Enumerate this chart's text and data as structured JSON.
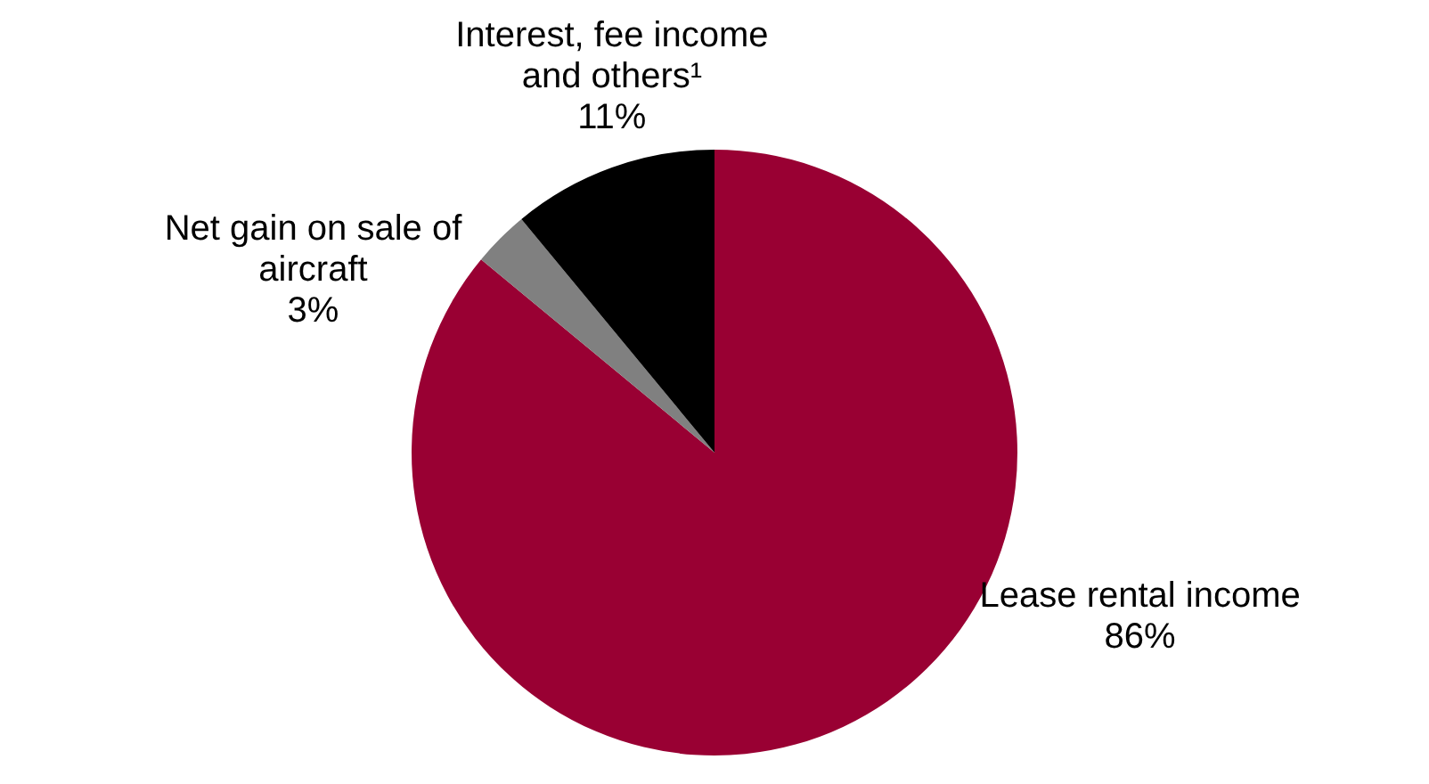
{
  "chart_data": {
    "type": "pie",
    "categories": [
      "Lease rental income",
      "Net gain on sale of aircraft",
      "Interest, fee income and others¹"
    ],
    "values": [
      86,
      3,
      11
    ],
    "colors": [
      "#990033",
      "#808080",
      "#000000"
    ],
    "value_labels": [
      "86%",
      "3%",
      "11%"
    ],
    "legend": false
  }
}
